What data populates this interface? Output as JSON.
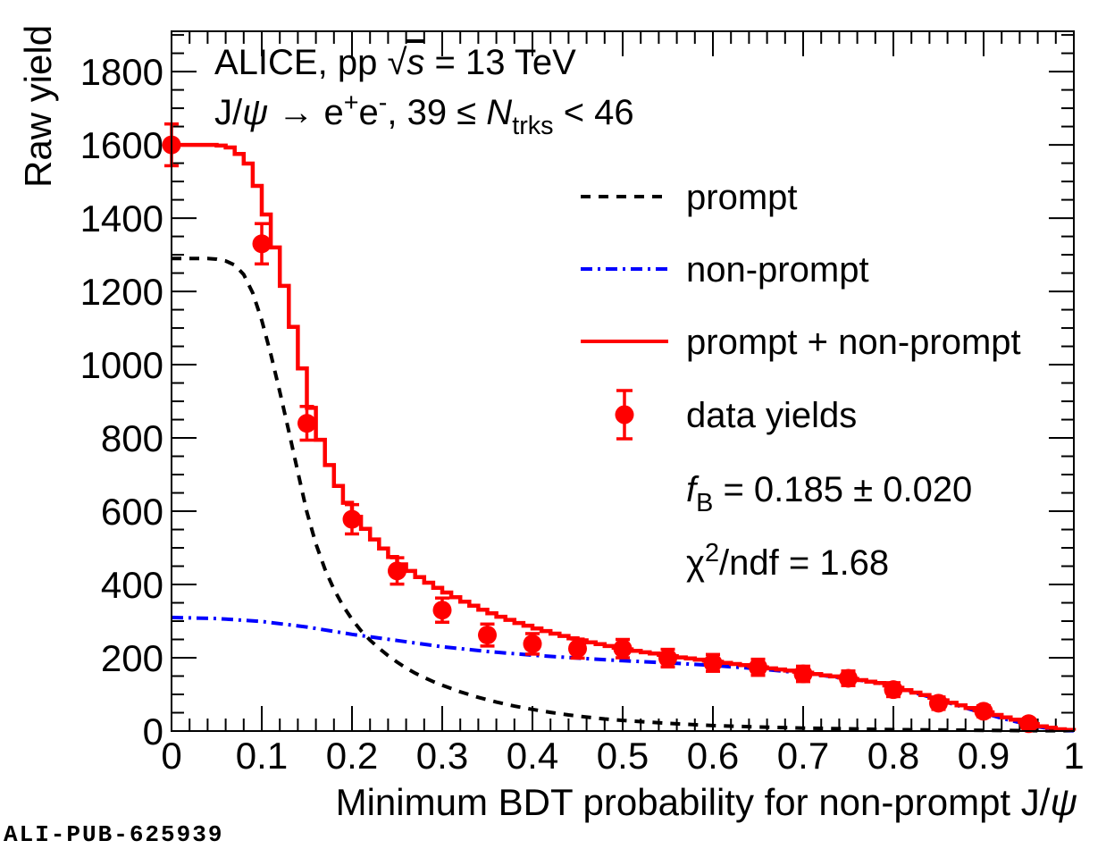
{
  "page": {
    "background": "#ffffff"
  },
  "chart_data": {
    "type": "line",
    "title_text": "ALICE, pp √s = 13 TeV",
    "title_rich": [
      {
        "t": "ALICE, pp "
      },
      {
        "t": "√",
        "s": "n"
      },
      {
        "t": "s",
        "s": "iov"
      },
      {
        "t": " = 13 TeV"
      }
    ],
    "subtitle_text": "J/ψ → e+e-, 39 ≤ Ntrks < 46",
    "subtitle_rich": [
      {
        "t": "J/"
      },
      {
        "t": "ψ",
        "s": "i"
      },
      {
        "t": " → e"
      },
      {
        "t": "+",
        "s": "sup"
      },
      {
        "t": "e"
      },
      {
        "t": "-",
        "s": "sup"
      },
      {
        "t": ", 39 ≤ "
      },
      {
        "t": "N",
        "s": "i"
      },
      {
        "t": "trks",
        "s": "sub"
      },
      {
        "t": " < 46"
      }
    ],
    "xlabel_text": "Minimum BDT probability for non-prompt J/ψ",
    "xlabel_rich": [
      {
        "t": "Minimum BDT probability for non-prompt J/"
      },
      {
        "t": "ψ",
        "s": "i"
      }
    ],
    "ylabel": "Raw yield",
    "xlim": [
      0,
      1
    ],
    "ylim": [
      0,
      1910
    ],
    "grid": false,
    "x_axis": {
      "major_tick_values": [
        0,
        0.1,
        0.2,
        0.3,
        0.4,
        0.5,
        0.6,
        0.7,
        0.8,
        0.9,
        1
      ],
      "major_tick_labels": [
        "0",
        "0.1",
        "0.2",
        "0.3",
        "0.4",
        "0.5",
        "0.6",
        "0.7",
        "0.8",
        "0.9",
        "1"
      ],
      "minor_tick_step": 0.02
    },
    "y_axis": {
      "major_tick_values": [
        0,
        200,
        400,
        600,
        800,
        1000,
        1200,
        1400,
        1600,
        1800
      ],
      "major_tick_labels": [
        "0",
        "200",
        "400",
        "600",
        "800",
        "1000",
        "1200",
        "1400",
        "1600",
        "1800"
      ],
      "minor_tick_step": 50
    },
    "colors": {
      "prompt": "#000000",
      "non_prompt": "#0000ff",
      "total": "#ff0000",
      "data": "#ff0000",
      "watermark": "#aaaaaa"
    },
    "series": [
      {
        "name": "prompt",
        "type": "line",
        "style": "dashed",
        "color": "#000000",
        "points": [
          [
            0,
            1290
          ],
          [
            0.04,
            1290
          ],
          [
            0.05,
            1288
          ],
          [
            0.06,
            1283
          ],
          [
            0.07,
            1272
          ],
          [
            0.08,
            1246
          ],
          [
            0.09,
            1196
          ],
          [
            0.1,
            1121
          ],
          [
            0.11,
            1029
          ],
          [
            0.12,
            926
          ],
          [
            0.13,
            818
          ],
          [
            0.14,
            707
          ],
          [
            0.15,
            598
          ],
          [
            0.16,
            511
          ],
          [
            0.17,
            442
          ],
          [
            0.18,
            387
          ],
          [
            0.19,
            342
          ],
          [
            0.2,
            305
          ],
          [
            0.21,
            274
          ],
          [
            0.22,
            248
          ],
          [
            0.23,
            226
          ],
          [
            0.24,
            206
          ],
          [
            0.25,
            188
          ],
          [
            0.26,
            172
          ],
          [
            0.27,
            158
          ],
          [
            0.28,
            146
          ],
          [
            0.29,
            135
          ],
          [
            0.3,
            125
          ],
          [
            0.32,
            107
          ],
          [
            0.34,
            92
          ],
          [
            0.36,
            79
          ],
          [
            0.38,
            68
          ],
          [
            0.4,
            59
          ],
          [
            0.42,
            51
          ],
          [
            0.44,
            44
          ],
          [
            0.46,
            38
          ],
          [
            0.48,
            33
          ],
          [
            0.5,
            29
          ],
          [
            0.55,
            21
          ],
          [
            0.6,
            15
          ],
          [
            0.65,
            11
          ],
          [
            0.7,
            8
          ],
          [
            0.75,
            6
          ],
          [
            0.8,
            4
          ],
          [
            0.85,
            3
          ],
          [
            0.9,
            2
          ],
          [
            0.95,
            1
          ],
          [
            1,
            1
          ]
        ]
      },
      {
        "name": "non-prompt",
        "type": "line",
        "style": "dashdot",
        "color": "#0000ff",
        "points": [
          [
            0,
            310
          ],
          [
            0.05,
            307
          ],
          [
            0.1,
            299
          ],
          [
            0.15,
            284
          ],
          [
            0.2,
            264
          ],
          [
            0.25,
            247
          ],
          [
            0.3,
            230
          ],
          [
            0.35,
            217
          ],
          [
            0.4,
            207
          ],
          [
            0.45,
            199
          ],
          [
            0.5,
            192
          ],
          [
            0.55,
            186
          ],
          [
            0.6,
            179
          ],
          [
            0.65,
            170
          ],
          [
            0.7,
            158
          ],
          [
            0.75,
            143
          ],
          [
            0.78,
            133
          ],
          [
            0.8,
            120
          ],
          [
            0.82,
            107
          ],
          [
            0.84,
            93
          ],
          [
            0.86,
            78
          ],
          [
            0.88,
            63
          ],
          [
            0.9,
            49
          ],
          [
            0.92,
            35
          ],
          [
            0.94,
            23
          ],
          [
            0.96,
            12
          ],
          [
            0.98,
            4
          ],
          [
            1,
            1
          ]
        ]
      },
      {
        "name": "prompt + non-prompt",
        "type": "step",
        "style": "solid",
        "color": "#ff0000",
        "bin_width": 0.01,
        "points": [
          [
            0,
            1600
          ],
          [
            0.04,
            1600
          ],
          [
            0.05,
            1598
          ],
          [
            0.06,
            1593
          ],
          [
            0.07,
            1575
          ],
          [
            0.08,
            1549
          ],
          [
            0.09,
            1488
          ],
          [
            0.1,
            1410
          ],
          [
            0.11,
            1320
          ],
          [
            0.12,
            1215
          ],
          [
            0.13,
            1103
          ],
          [
            0.14,
            990
          ],
          [
            0.15,
            882
          ],
          [
            0.16,
            795
          ],
          [
            0.17,
            726
          ],
          [
            0.18,
            669
          ],
          [
            0.19,
            623
          ],
          [
            0.2,
            585
          ],
          [
            0.21,
            552
          ],
          [
            0.22,
            523
          ],
          [
            0.23,
            498
          ],
          [
            0.24,
            475
          ],
          [
            0.25,
            455
          ],
          [
            0.26,
            437
          ],
          [
            0.27,
            420
          ],
          [
            0.28,
            405
          ],
          [
            0.29,
            391
          ],
          [
            0.3,
            378
          ],
          [
            0.32,
            353
          ],
          [
            0.34,
            331
          ],
          [
            0.36,
            312
          ],
          [
            0.38,
            295
          ],
          [
            0.4,
            280
          ],
          [
            0.42,
            266
          ],
          [
            0.44,
            253
          ],
          [
            0.46,
            242
          ],
          [
            0.48,
            232
          ],
          [
            0.5,
            223
          ],
          [
            0.52,
            215
          ],
          [
            0.54,
            208
          ],
          [
            0.56,
            201
          ],
          [
            0.58,
            195
          ],
          [
            0.6,
            189
          ],
          [
            0.62,
            183
          ],
          [
            0.64,
            177
          ],
          [
            0.66,
            171
          ],
          [
            0.68,
            165
          ],
          [
            0.7,
            159
          ],
          [
            0.72,
            152
          ],
          [
            0.74,
            146
          ],
          [
            0.76,
            139
          ],
          [
            0.78,
            131
          ],
          [
            0.8,
            118
          ],
          [
            0.82,
            105
          ],
          [
            0.84,
            91
          ],
          [
            0.86,
            77
          ],
          [
            0.88,
            63
          ],
          [
            0.9,
            51
          ],
          [
            0.92,
            37
          ],
          [
            0.94,
            25
          ],
          [
            0.96,
            13
          ],
          [
            0.98,
            5
          ],
          [
            1,
            1
          ]
        ]
      },
      {
        "name": "data yields",
        "type": "scatter",
        "marker": "circle",
        "color": "#ff0000",
        "x": [
          0,
          0.1,
          0.15,
          0.2,
          0.25,
          0.3,
          0.35,
          0.4,
          0.45,
          0.5,
          0.55,
          0.6,
          0.65,
          0.7,
          0.75,
          0.8,
          0.85,
          0.9,
          0.95
        ],
        "y": [
          1600,
          1330,
          840,
          578,
          437,
          330,
          262,
          238,
          225,
          225,
          199,
          186,
          174,
          156,
          144,
          113,
          76,
          54,
          20
        ],
        "yerr": [
          57,
          55,
          46,
          40,
          36,
          33,
          30,
          28,
          26,
          25,
          24,
          23,
          22,
          21,
          20,
          19,
          17,
          15,
          12
        ]
      }
    ],
    "legend": {
      "position": "upper-right",
      "items": [
        {
          "key": "prompt",
          "swatch": "dash-black",
          "label": "prompt"
        },
        {
          "key": "non-prompt",
          "swatch": "dashdot-blue",
          "label": "non-prompt"
        },
        {
          "key": "total",
          "swatch": "solid-red",
          "label": "prompt + non-prompt"
        },
        {
          "key": "data",
          "swatch": "marker-red",
          "label": "data yields"
        },
        {
          "key": "fB",
          "swatch": "none",
          "label": "fB = 0.185 ± 0.020",
          "rich": [
            {
              "t": "f",
              "s": "i"
            },
            {
              "t": "B",
              "s": "sub"
            },
            {
              "t": " = 0.185 ± 0.020"
            }
          ]
        },
        {
          "key": "chi2",
          "swatch": "none",
          "label": "χ2/ndf = 1.68",
          "rich": [
            {
              "t": "χ"
            },
            {
              "t": "2",
              "s": "sup"
            },
            {
              "t": "/ndf = 1.68"
            }
          ]
        }
      ]
    },
    "fit_results": {
      "fB_value": "0.185",
      "fB_error": "0.020",
      "chi2_ndf": "1.68"
    },
    "watermark": "ALI-PUB-625939"
  }
}
